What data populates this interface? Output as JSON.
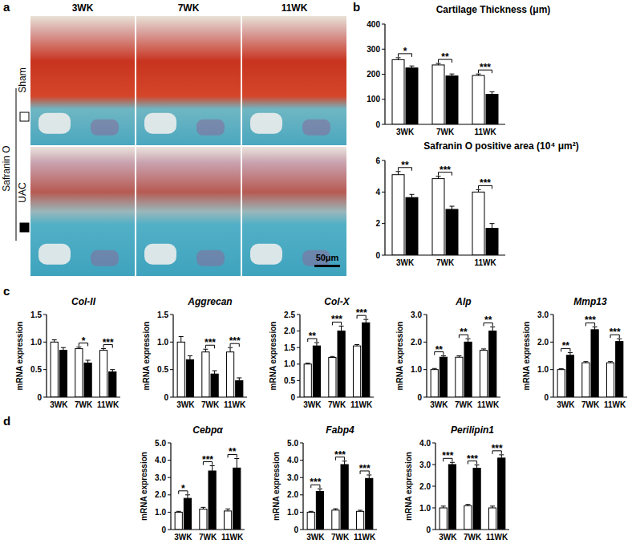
{
  "figure": {
    "panel_labels": [
      "a",
      "b",
      "c",
      "d"
    ],
    "stain": "Safranin O",
    "columns": [
      "3WK",
      "7WK",
      "11WK"
    ],
    "scale_bar": "50μm"
  },
  "chart_data": [
    {
      "type": "bar",
      "title": "Cartilage Thickness (μm)",
      "categories": [
        "3WK",
        "7WK",
        "11WK"
      ],
      "series": [
        {
          "name": "Sham",
          "color": "#ffffff",
          "values": [
            258,
            237,
            195
          ],
          "errors": [
            8,
            6,
            6
          ]
        },
        {
          "name": "UAC",
          "color": "#000000",
          "values": [
            225,
            193,
            120
          ],
          "errors": [
            8,
            8,
            10
          ]
        }
      ],
      "significance": [
        "*",
        "**",
        "***"
      ],
      "ylim": [
        0,
        400
      ],
      "yticks": [
        0,
        100,
        200,
        300,
        400
      ]
    },
    {
      "type": "bar",
      "title": "Safranin O positive area (10⁴ μm²)",
      "categories": [
        "3WK",
        "7WK",
        "11WK"
      ],
      "series": [
        {
          "name": "Sham",
          "color": "#ffffff",
          "values": [
            5.1,
            4.85,
            4.0
          ],
          "errors": [
            0.2,
            0.15,
            0.15
          ]
        },
        {
          "name": "UAC",
          "color": "#000000",
          "values": [
            3.65,
            2.9,
            1.7
          ],
          "errors": [
            0.2,
            0.2,
            0.3
          ]
        }
      ],
      "significance": [
        "**",
        "***",
        "***"
      ],
      "ylim": [
        0,
        6
      ],
      "yticks": [
        0,
        2,
        4,
        6
      ]
    },
    {
      "type": "bar",
      "title": "Col-II",
      "ylabel": "mRNA expression",
      "categories": [
        "3WK",
        "7WK",
        "11WK"
      ],
      "series": [
        {
          "name": "Sham",
          "color": "#ffffff",
          "values": [
            1.0,
            0.88,
            0.85
          ],
          "errors": [
            0.04,
            0.03,
            0.03
          ]
        },
        {
          "name": "UAC",
          "color": "#000000",
          "values": [
            0.85,
            0.62,
            0.46
          ],
          "errors": [
            0.05,
            0.05,
            0.04
          ]
        }
      ],
      "significance": [
        null,
        "*",
        "***"
      ],
      "ylim": [
        0,
        1.5
      ],
      "yticks": [
        0,
        0.5,
        {
          "value": 1,
          "label": "1.0"
        },
        1.5
      ]
    },
    {
      "type": "bar",
      "title": "Aggrecan",
      "ylabel": "mRNA expression",
      "categories": [
        "3WK",
        "7WK",
        "11WK"
      ],
      "series": [
        {
          "name": "Sham",
          "color": "#ffffff",
          "values": [
            1.0,
            0.82,
            0.82
          ],
          "errors": [
            0.1,
            0.05,
            0.08
          ]
        },
        {
          "name": "UAC",
          "color": "#000000",
          "values": [
            0.68,
            0.42,
            0.3
          ],
          "errors": [
            0.07,
            0.06,
            0.05
          ]
        }
      ],
      "significance": [
        null,
        "***",
        "***"
      ],
      "ylim": [
        0,
        1.5
      ],
      "yticks": [
        0,
        0.5,
        {
          "value": 1,
          "label": "1.0"
        },
        1.5
      ]
    },
    {
      "type": "bar",
      "title": "Col-X",
      "ylabel": "mRNA expression",
      "categories": [
        "3WK",
        "7WK",
        "11WK"
      ],
      "series": [
        {
          "name": "Sham",
          "color": "#ffffff",
          "values": [
            1.0,
            1.2,
            1.55
          ],
          "errors": [
            0.03,
            0.03,
            0.04
          ]
        },
        {
          "name": "UAC",
          "color": "#000000",
          "values": [
            1.55,
            2.0,
            2.25
          ],
          "errors": [
            0.1,
            0.15,
            0.1
          ]
        }
      ],
      "significance": [
        "**",
        "***",
        "***"
      ],
      "ylim": [
        0,
        2.5
      ],
      "yticks": [
        0,
        0.5,
        {
          "value": 1,
          "label": "1.0"
        },
        1.5,
        {
          "value": 2,
          "label": "2.0"
        },
        2.5
      ]
    },
    {
      "type": "bar",
      "title": "Alp",
      "ylabel": "mRNA expression",
      "categories": [
        "3WK",
        "7WK",
        "11WK"
      ],
      "series": [
        {
          "name": "Sham",
          "color": "#ffffff",
          "values": [
            1.0,
            1.45,
            1.7
          ],
          "errors": [
            0.04,
            0.05,
            0.05
          ]
        },
        {
          "name": "UAC",
          "color": "#000000",
          "values": [
            1.45,
            2.0,
            2.4
          ],
          "errors": [
            0.05,
            0.12,
            0.15
          ]
        }
      ],
      "significance": [
        "**",
        "**",
        "**"
      ],
      "ylim": [
        0,
        3
      ],
      "yticks": [
        0,
        {
          "value": 1,
          "label": "1.0"
        },
        {
          "value": 2,
          "label": "2.0"
        },
        {
          "value": 3,
          "label": "3.0"
        }
      ]
    },
    {
      "type": "bar",
      "title": "Mmp13",
      "ylabel": "mRNA expression",
      "categories": [
        "3WK",
        "7WK",
        "11WK"
      ],
      "series": [
        {
          "name": "Sham",
          "color": "#ffffff",
          "values": [
            1.0,
            1.25,
            1.25
          ],
          "errors": [
            0.03,
            0.04,
            0.04
          ]
        },
        {
          "name": "UAC",
          "color": "#000000",
          "values": [
            1.52,
            2.45,
            2.02
          ],
          "errors": [
            0.1,
            0.1,
            0.1
          ]
        }
      ],
      "significance": [
        "**",
        "***",
        "***"
      ],
      "ylim": [
        0,
        3
      ],
      "yticks": [
        0,
        {
          "value": 1,
          "label": "1.0"
        },
        {
          "value": 2,
          "label": "2.0"
        },
        {
          "value": 3,
          "label": "3.0"
        }
      ]
    },
    {
      "type": "bar",
      "title": "Cebpα",
      "ylabel": "mRNA expression",
      "categories": [
        "3WK",
        "7WK",
        "11WK"
      ],
      "series": [
        {
          "name": "Sham",
          "color": "#ffffff",
          "values": [
            1.0,
            1.18,
            1.07
          ],
          "errors": [
            0.05,
            0.1,
            0.12
          ]
        },
        {
          "name": "UAC",
          "color": "#000000",
          "values": [
            1.8,
            3.38,
            3.55
          ],
          "errors": [
            0.2,
            0.3,
            0.55
          ]
        }
      ],
      "significance": [
        "*",
        "***",
        "**"
      ],
      "ylim": [
        0,
        5
      ],
      "yticks": [
        0,
        {
          "value": 1,
          "label": "1.0"
        },
        {
          "value": 2,
          "label": "2.0"
        },
        {
          "value": 3,
          "label": "3.0"
        },
        {
          "value": 4,
          "label": "4.0"
        },
        {
          "value": 5,
          "label": "5.0"
        }
      ]
    },
    {
      "type": "bar",
      "title": "Fabp4",
      "ylabel": "mRNA expression",
      "categories": [
        "3WK",
        "7WK",
        "11WK"
      ],
      "series": [
        {
          "name": "Sham",
          "color": "#ffffff",
          "values": [
            1.0,
            1.12,
            1.05
          ],
          "errors": [
            0.05,
            0.08,
            0.06
          ]
        },
        {
          "name": "UAC",
          "color": "#000000",
          "values": [
            2.2,
            3.75,
            2.95
          ],
          "errors": [
            0.15,
            0.2,
            0.2
          ]
        }
      ],
      "significance": [
        "***",
        "***",
        "***"
      ],
      "ylim": [
        0,
        5
      ],
      "yticks": [
        0,
        {
          "value": 1,
          "label": "1.0"
        },
        {
          "value": 2,
          "label": "2.0"
        },
        {
          "value": 3,
          "label": "3.0"
        },
        {
          "value": 4,
          "label": "4.0"
        },
        {
          "value": 5,
          "label": "5.0"
        }
      ]
    },
    {
      "type": "bar",
      "title": "Perilipin1",
      "ylabel": "mRNA expression",
      "categories": [
        "3WK",
        "7WK",
        "11WK"
      ],
      "series": [
        {
          "name": "Sham",
          "color": "#ffffff",
          "values": [
            1.0,
            1.1,
            1.0
          ],
          "errors": [
            0.08,
            0.06,
            0.08
          ]
        },
        {
          "name": "UAC",
          "color": "#000000",
          "values": [
            3.0,
            2.83,
            3.3
          ],
          "errors": [
            0.1,
            0.15,
            0.15
          ]
        }
      ],
      "significance": [
        "***",
        "***",
        "***"
      ],
      "ylim": [
        0,
        4
      ],
      "yticks": [
        0,
        {
          "value": 1,
          "label": "1.0"
        },
        {
          "value": 2,
          "label": "2.0"
        },
        {
          "value": 3,
          "label": "3.0"
        },
        {
          "value": 4,
          "label": "4.0"
        }
      ]
    }
  ]
}
